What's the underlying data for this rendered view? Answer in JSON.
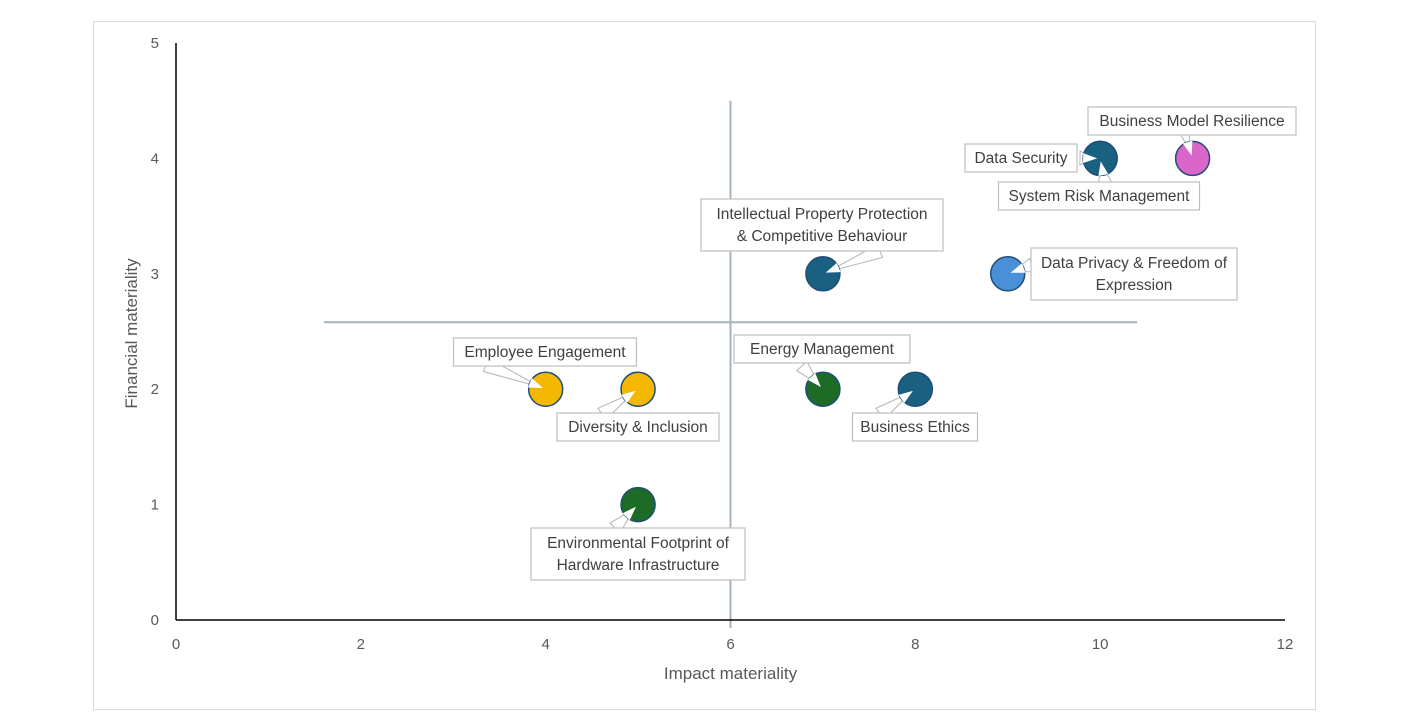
{
  "chart_data": {
    "type": "scatter",
    "xlabel": "Impact materiality",
    "ylabel": "Financial materiality",
    "xlim": [
      0,
      12
    ],
    "ylim": [
      0,
      5
    ],
    "xticks": [
      "0",
      "2",
      "4",
      "6",
      "8",
      "10",
      "12"
    ],
    "yticks": [
      "0",
      "1",
      "2",
      "3",
      "4",
      "5"
    ],
    "grid": false,
    "quadrant_lines": {
      "x": 6,
      "y": 2.58,
      "x_line_from": 0,
      "x_line_to": 4.5,
      "y_line_from": 1.6,
      "y_line_to": 10.4
    },
    "points": [
      {
        "label": [
          "Business Model Resilience"
        ],
        "x": 11,
        "y": 4,
        "color": "#d966c8"
      },
      {
        "label": [
          "Data Security"
        ],
        "x": 10,
        "y": 4,
        "color": "#1a6080"
      },
      {
        "label": [
          "System Risk Management"
        ],
        "x": 10,
        "y": 4,
        "color": "#1a6080"
      },
      {
        "label": [
          "Intellectual Property Protection",
          "& Competitive Behaviour"
        ],
        "x": 7,
        "y": 3,
        "color": "#1a6080"
      },
      {
        "label": [
          "Data Privacy & Freedom of",
          "Expression"
        ],
        "x": 9,
        "y": 3,
        "color": "#4a90d9"
      },
      {
        "label": [
          "Employee Engagement"
        ],
        "x": 4,
        "y": 2,
        "color": "#f5b800"
      },
      {
        "label": [
          "Diversity & Inclusion"
        ],
        "x": 5,
        "y": 2,
        "color": "#f5b800"
      },
      {
        "label": [
          "Energy Management"
        ],
        "x": 7,
        "y": 2,
        "color": "#1e6b25"
      },
      {
        "label": [
          "Business Ethics"
        ],
        "x": 8,
        "y": 2,
        "color": "#1a6080"
      },
      {
        "label": [
          "Environmental Footprint of",
          "Hardware Infrastructure"
        ],
        "x": 5,
        "y": 1,
        "color": "#1e6b25"
      }
    ],
    "colors": {
      "axis": "#000000",
      "quadrant_line": "#a6b4bf",
      "callout_border": "#bfbfbf",
      "marker_edge": "#1f4e79"
    }
  }
}
